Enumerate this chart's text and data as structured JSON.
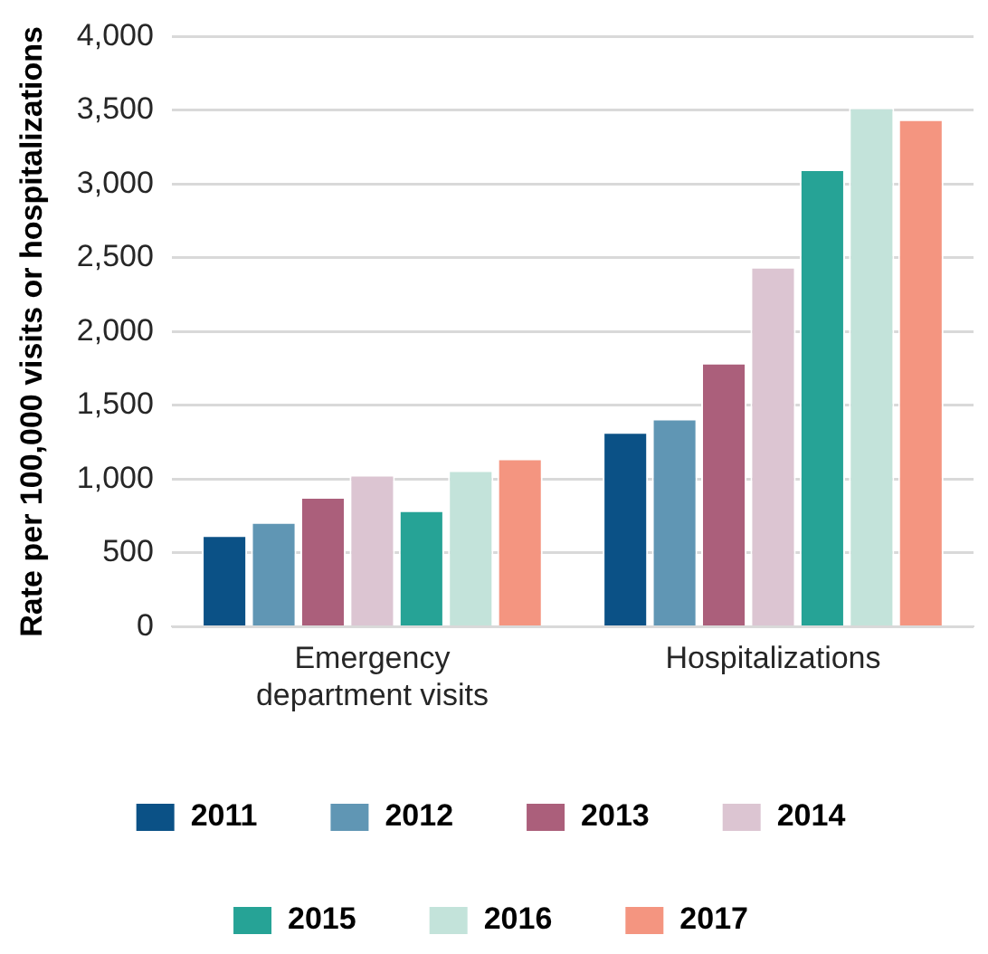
{
  "chart_data": {
    "type": "bar",
    "ylabel": "Rate per 100,000 visits or hospitalizations",
    "categories": [
      "Emergency department visits",
      "Hospitalizations"
    ],
    "series": [
      {
        "name": "2011",
        "color": "#0b5186",
        "values": [
          620,
          1320
        ]
      },
      {
        "name": "2012",
        "color": "#6096b4",
        "values": [
          710,
          1410
        ]
      },
      {
        "name": "2013",
        "color": "#ab5f7b",
        "values": [
          880,
          1790
        ]
      },
      {
        "name": "2014",
        "color": "#dcc5d2",
        "values": [
          1030,
          2440
        ]
      },
      {
        "name": "2015",
        "color": "#26a396",
        "values": [
          790,
          3100
        ]
      },
      {
        "name": "2016",
        "color": "#c3e3da",
        "values": [
          1060,
          3520
        ]
      },
      {
        "name": "2017",
        "color": "#f49580",
        "values": [
          1140,
          3440
        ]
      }
    ],
    "ylim": [
      0,
      4000
    ],
    "yticks": [
      0,
      500,
      {
        "value": 1000,
        "label": "1,000"
      },
      {
        "value": 1500,
        "label": "1,500"
      },
      {
        "value": 2000,
        "label": "2,000"
      },
      {
        "value": 2500,
        "label": "2,500"
      },
      {
        "value": 3000,
        "label": "3,000"
      },
      {
        "value": 3500,
        "label": "3,500"
      },
      {
        "value": 4000,
        "label": "4,000"
      }
    ],
    "grid": "y",
    "legend": "bottom"
  }
}
